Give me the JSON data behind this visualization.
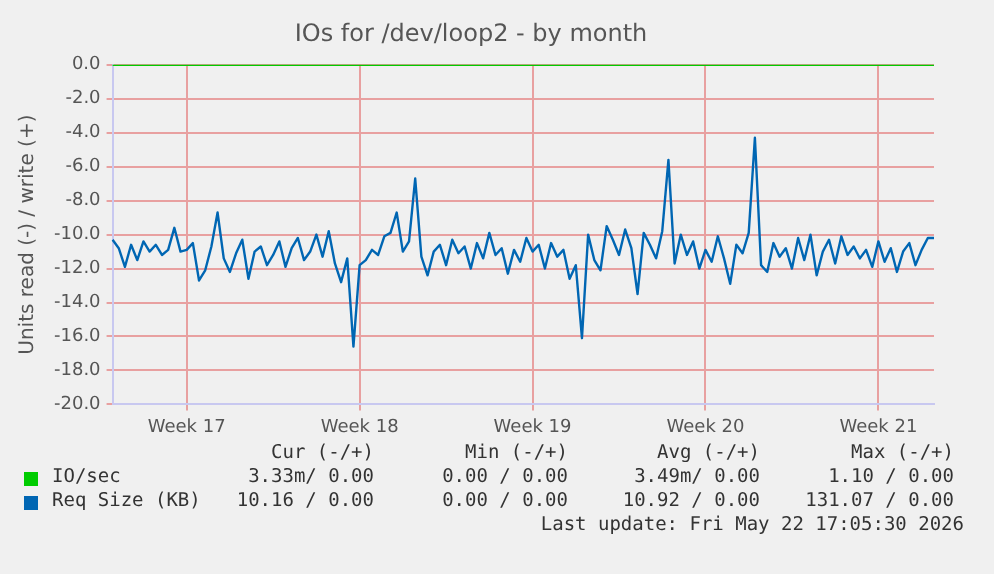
{
  "chart_data": {
    "type": "line",
    "title": "IOs for /dev/loop2 - by month",
    "ylabel": "Units read (-) / write (+)",
    "categories": [
      null,
      null,
      null,
      null,
      null,
      null,
      null,
      null,
      null,
      null,
      null,
      null,
      "Week 17",
      null,
      null,
      null,
      null,
      null,
      null,
      null,
      null,
      null,
      null,
      null,
      null,
      null,
      null,
      null,
      null,
      null,
      null,
      null,
      null,
      null,
      null,
      null,
      null,
      null,
      null,
      null,
      "Week 18",
      null,
      null,
      null,
      null,
      null,
      null,
      null,
      null,
      null,
      null,
      null,
      null,
      null,
      null,
      null,
      null,
      null,
      null,
      null,
      null,
      null,
      null,
      null,
      null,
      null,
      null,
      null,
      "Week 19",
      null,
      null,
      null,
      null,
      null,
      null,
      null,
      null,
      null,
      null,
      null,
      null,
      null,
      null,
      null,
      null,
      null,
      null,
      null,
      null,
      null,
      null,
      null,
      null,
      null,
      null,
      null,
      "Week 20",
      null,
      null,
      null,
      null,
      null,
      null,
      null,
      null,
      null,
      null,
      null,
      null,
      null,
      null,
      null,
      null,
      null,
      null,
      null,
      null,
      null,
      null,
      null,
      null,
      null,
      null,
      null,
      "Week 21",
      null,
      null,
      null,
      null,
      null,
      null,
      null,
      null,
      null
    ],
    "ylim": [
      -20,
      0
    ],
    "yticks": [
      {
        "value": -20,
        "label": "-20.0"
      },
      {
        "value": -18,
        "label": "-18.0"
      },
      {
        "value": -16,
        "label": "-16.0"
      },
      {
        "value": -14,
        "label": "-14.0"
      },
      {
        "value": -12,
        "label": "-12.0"
      },
      {
        "value": -10,
        "label": "-10.0"
      },
      {
        "value": -8,
        "label": "-8.0"
      },
      {
        "value": -6,
        "label": "-6.0"
      },
      {
        "value": -4,
        "label": "-4.0"
      },
      {
        "value": -2,
        "label": "-2.0"
      },
      {
        "value": 0,
        "label": "0.0"
      }
    ],
    "grid": true,
    "legend": "bottom",
    "marker": "none",
    "line_style": "solid",
    "series": [
      {
        "name": "IO/sec",
        "color": "#00cc00",
        "values": [
          0,
          0,
          0,
          0,
          0,
          0,
          0,
          0,
          0,
          0,
          0,
          0,
          0,
          0,
          0,
          0,
          0,
          0,
          0,
          0,
          0,
          0,
          0,
          0,
          0,
          0,
          0,
          0,
          0,
          0,
          0,
          0,
          0,
          0,
          0,
          0,
          0,
          0,
          0,
          0,
          0,
          0,
          0,
          0,
          0,
          0,
          0,
          0,
          0,
          0,
          0,
          0,
          0,
          0,
          0,
          0,
          0,
          0,
          0,
          0,
          0,
          0,
          0,
          0,
          0,
          0,
          0,
          0,
          0,
          0,
          0,
          0,
          0,
          0,
          0,
          0,
          0,
          0,
          0,
          0,
          0,
          0,
          0,
          0,
          0,
          0,
          0,
          0,
          0,
          0,
          0,
          0,
          0,
          0,
          0,
          0,
          0,
          0,
          0,
          0,
          0,
          0,
          0,
          0,
          0,
          0,
          0,
          0,
          0,
          0,
          0,
          0,
          0,
          0,
          0,
          0,
          0,
          0,
          0,
          0,
          0,
          0,
          0,
          0,
          0,
          0,
          0,
          0,
          0,
          0,
          0,
          0,
          0,
          0
        ]
      },
      {
        "name": "Req Size (KB)",
        "color": "#0066b3",
        "values": [
          -10.3,
          -10.8,
          -11.9,
          -10.6,
          -11.5,
          -10.4,
          -11.0,
          -10.6,
          -11.2,
          -10.9,
          -9.6,
          -11.0,
          -10.9,
          -10.5,
          -12.7,
          -12.1,
          -10.7,
          -8.7,
          -11.4,
          -12.2,
          -11.1,
          -10.3,
          -12.6,
          -11.0,
          -10.7,
          -11.8,
          -11.2,
          -10.4,
          -11.9,
          -10.8,
          -10.2,
          -11.5,
          -11.0,
          -10.0,
          -11.3,
          -9.8,
          -11.7,
          -12.8,
          -11.4,
          -16.6,
          -11.8,
          -11.5,
          -10.9,
          -11.2,
          -10.1,
          -9.9,
          -8.7,
          -11.0,
          -10.4,
          -6.7,
          -11.3,
          -12.4,
          -11.0,
          -10.6,
          -11.8,
          -10.3,
          -11.1,
          -10.7,
          -12.0,
          -10.5,
          -11.4,
          -9.9,
          -11.2,
          -10.8,
          -12.3,
          -10.9,
          -11.6,
          -10.2,
          -11.0,
          -10.6,
          -12.0,
          -10.5,
          -11.3,
          -10.9,
          -12.6,
          -11.8,
          -16.1,
          -10.0,
          -11.5,
          -12.1,
          -9.5,
          -10.3,
          -11.2,
          -9.7,
          -10.8,
          -13.5,
          -9.9,
          -10.6,
          -11.4,
          -9.8,
          -5.6,
          -11.7,
          -10.0,
          -11.2,
          -10.4,
          -12.0,
          -10.9,
          -11.6,
          -10.1,
          -11.4,
          -12.9,
          -10.6,
          -11.1,
          -9.9,
          -4.3,
          -11.8,
          -12.2,
          -10.5,
          -11.3,
          -10.8,
          -12.0,
          -10.2,
          -11.5,
          -10.0,
          -12.4,
          -11.0,
          -10.3,
          -11.7,
          -10.1,
          -11.2,
          -10.7,
          -11.4,
          -10.9,
          -11.9,
          -10.4,
          -11.6,
          -10.8,
          -12.2,
          -11.0,
          -10.5,
          -11.8,
          -10.9,
          -10.2,
          -10.2
        ]
      }
    ],
    "annotations": [
      "Cur (-/+)",
      "Min (-/+)",
      "Avg (-/+)",
      "Max (-/+)",
      "3.33m/ 0.00",
      "0.00 / 0.00",
      "3.49m/ 0.00",
      "1.10 / 0.00",
      "10.16 / 0.00",
      "0.00 / 0.00",
      "10.92 / 0.00",
      "131.07 / 0.00",
      "Last update: Fri May 22 17:05:30 2026"
    ]
  }
}
